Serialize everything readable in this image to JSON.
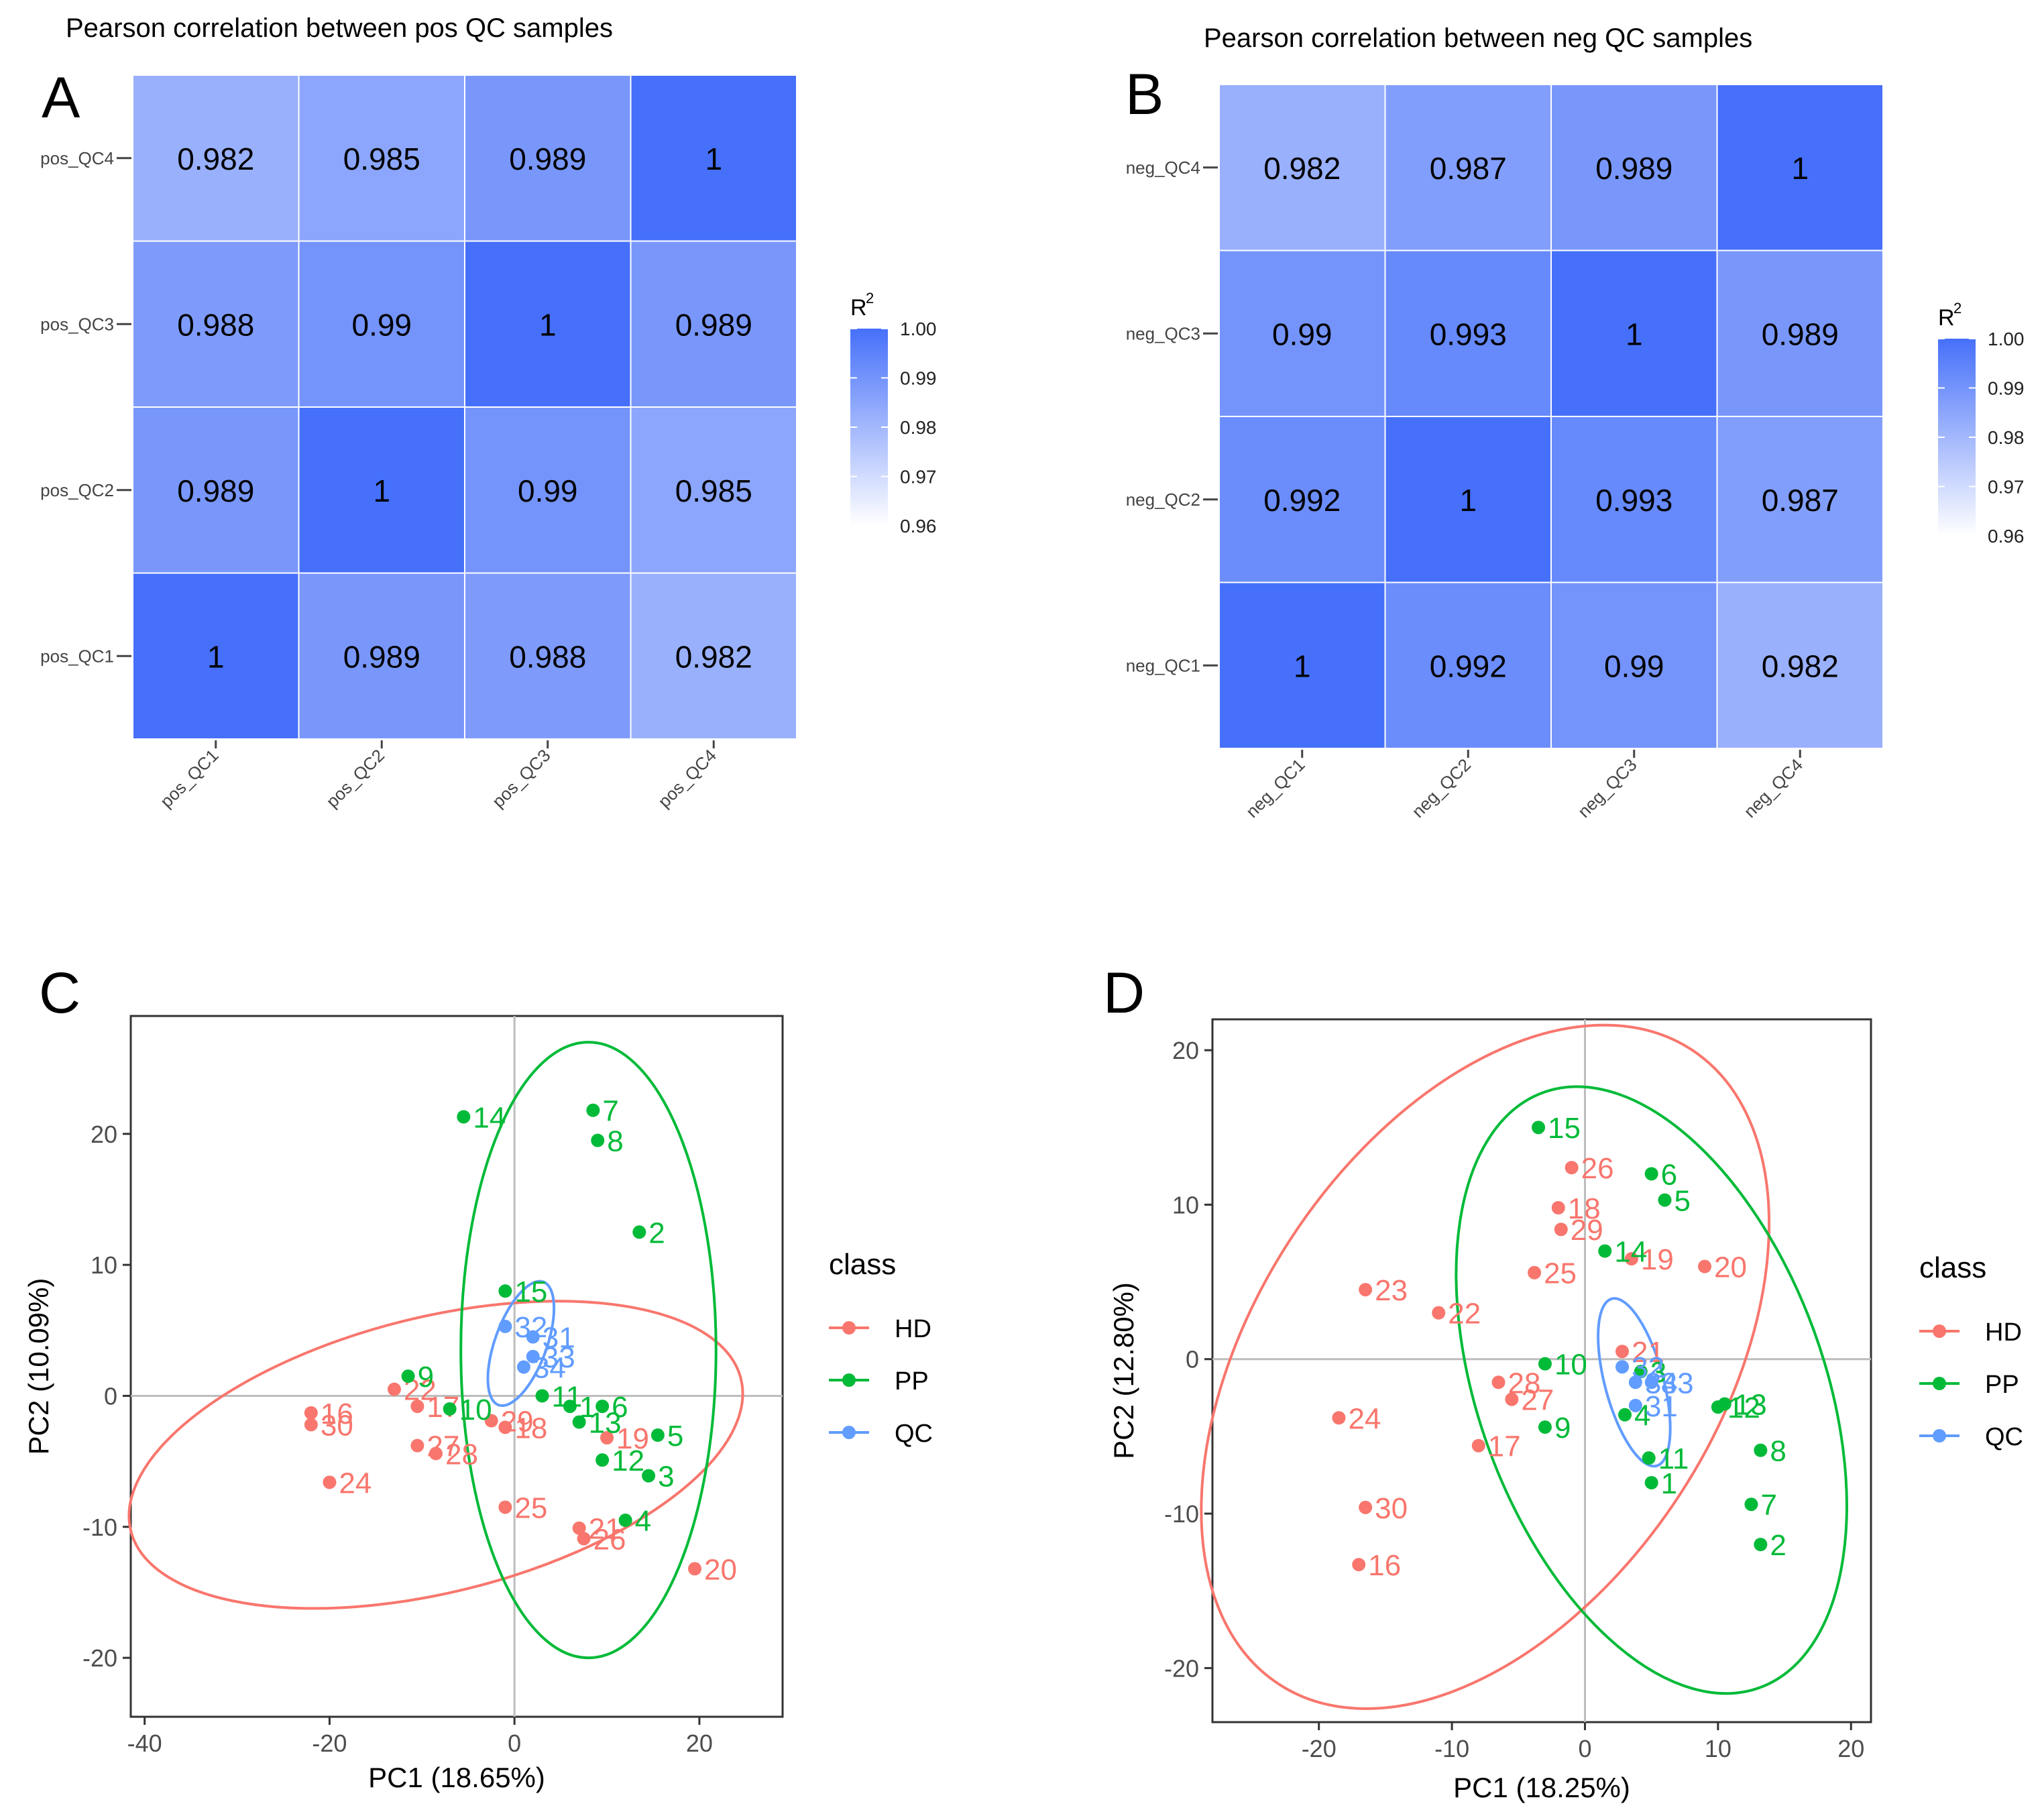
{
  "colors": {
    "HD": "#F8766D",
    "PP": "#00BA38",
    "QC": "#619CFF",
    "heat_high": "#4670FA",
    "heat_low": "#FFFFFF"
  },
  "chart_data": [
    {
      "id": "A",
      "panel_letter": "A",
      "type": "heatmap",
      "title": "Pearson correlation between pos QC samples",
      "rows": [
        "pos_QC4",
        "pos_QC3",
        "pos_QC2",
        "pos_QC1"
      ],
      "cols": [
        "pos_QC1",
        "pos_QC2",
        "pos_QC3",
        "pos_QC4"
      ],
      "values": [
        [
          0.982,
          0.985,
          0.989,
          1
        ],
        [
          0.988,
          0.99,
          1,
          0.989
        ],
        [
          0.989,
          1,
          0.99,
          0.985
        ],
        [
          1,
          0.989,
          0.988,
          0.982
        ]
      ],
      "labels": [
        [
          "0.982",
          "0.985",
          "0.989",
          "1"
        ],
        [
          "0.988",
          "0.99",
          "1",
          "0.989"
        ],
        [
          "0.989",
          "1",
          "0.99",
          "0.985"
        ],
        [
          "1",
          "0.989",
          "0.988",
          "0.982"
        ]
      ],
      "legend": {
        "title": "R",
        "title_sup": "2",
        "range": [
          0.96,
          1.0
        ],
        "ticks": [
          "1.00",
          "0.99",
          "0.98",
          "0.97",
          "0.96"
        ]
      }
    },
    {
      "id": "B",
      "panel_letter": "B",
      "type": "heatmap",
      "title": "Pearson correlation between neg QC samples",
      "rows": [
        "neg_QC4",
        "neg_QC3",
        "neg_QC2",
        "neg_QC1"
      ],
      "cols": [
        "neg_QC1",
        "neg_QC2",
        "neg_QC3",
        "neg_QC4"
      ],
      "values": [
        [
          0.982,
          0.987,
          0.989,
          1
        ],
        [
          0.99,
          0.993,
          1,
          0.989
        ],
        [
          0.992,
          1,
          0.993,
          0.987
        ],
        [
          1,
          0.992,
          0.99,
          0.982
        ]
      ],
      "labels": [
        [
          "0.982",
          "0.987",
          "0.989",
          "1"
        ],
        [
          "0.99",
          "0.993",
          "1",
          "0.989"
        ],
        [
          "0.992",
          "1",
          "0.993",
          "0.987"
        ],
        [
          "1",
          "0.992",
          "0.99",
          "0.982"
        ]
      ],
      "legend": {
        "title": "R",
        "title_sup": "2",
        "range": [
          0.96,
          1.0
        ],
        "ticks": [
          "1.00",
          "0.99",
          "0.98",
          "0.97",
          "0.96"
        ]
      }
    },
    {
      "id": "C",
      "panel_letter": "C",
      "type": "scatter",
      "xlabel": "PC1 (18.65%)",
      "ylabel": "PC2 (10.09%)",
      "xlim": [
        -41.5,
        29
      ],
      "ylim": [
        -24.5,
        29
      ],
      "xticks": [
        "-40",
        "-20",
        "0",
        "20"
      ],
      "yticks": [
        "-20",
        "-10",
        "0",
        "10",
        "20"
      ],
      "legend_title": "class",
      "legend": [
        "HD",
        "PP",
        "QC"
      ],
      "series": [
        {
          "name": "HD",
          "points": [
            {
              "label": "16",
              "x": -22,
              "y": -1.3
            },
            {
              "label": "30",
              "x": -22,
              "y": -2.2
            },
            {
              "label": "24",
              "x": -20,
              "y": -6.6
            },
            {
              "label": "22",
              "x": -13,
              "y": 0.5
            },
            {
              "label": "17",
              "x": -10.5,
              "y": -0.8
            },
            {
              "label": "27",
              "x": -10.5,
              "y": -3.8
            },
            {
              "label": "28",
              "x": -8.5,
              "y": -4.4
            },
            {
              "label": "29",
              "x": -2.5,
              "y": -1.9
            },
            {
              "label": "18",
              "x": -1,
              "y": -2.4
            },
            {
              "label": "25",
              "x": -1,
              "y": -8.5
            },
            {
              "label": "19",
              "x": 10,
              "y": -3.2
            },
            {
              "label": "21",
              "x": 7,
              "y": -10.1
            },
            {
              "label": "26",
              "x": 7.5,
              "y": -10.9
            },
            {
              "label": "20",
              "x": 19.5,
              "y": -13.2
            }
          ]
        },
        {
          "name": "PP",
          "points": [
            {
              "label": "14",
              "x": -5.5,
              "y": 21.3
            },
            {
              "label": "7",
              "x": 8.5,
              "y": 21.8
            },
            {
              "label": "8",
              "x": 9,
              "y": 19.5
            },
            {
              "label": "2",
              "x": 13.5,
              "y": 12.5
            },
            {
              "label": "15",
              "x": -1,
              "y": 8
            },
            {
              "label": "9",
              "x": -11.5,
              "y": 1.5
            },
            {
              "label": "10",
              "x": -7,
              "y": -1
            },
            {
              "label": "11",
              "x": 3,
              "y": 0
            },
            {
              "label": "1",
              "x": 6,
              "y": -0.8
            },
            {
              "label": "6",
              "x": 9.5,
              "y": -0.8
            },
            {
              "label": "13",
              "x": 7,
              "y": -2
            },
            {
              "label": "5",
              "x": 15.5,
              "y": -3
            },
            {
              "label": "12",
              "x": 9.5,
              "y": -4.9
            },
            {
              "label": "3",
              "x": 14.5,
              "y": -6.1
            },
            {
              "label": "4",
              "x": 12,
              "y": -9.5
            }
          ]
        },
        {
          "name": "QC",
          "points": [
            {
              "label": "32",
              "x": -1,
              "y": 5.3
            },
            {
              "label": "31",
              "x": 2,
              "y": 4.5
            },
            {
              "label": "33",
              "x": 2,
              "y": 3
            },
            {
              "label": "34",
              "x": 1,
              "y": 2.2
            }
          ]
        }
      ],
      "ellipses": [
        {
          "class": "HD",
          "cx": -8.5,
          "cy": -4.5,
          "rx": 34,
          "ry": 10.5,
          "angle": -14
        },
        {
          "class": "PP",
          "cx": 8,
          "cy": 3.5,
          "rx": 13.8,
          "ry": 23.5,
          "angle": 0
        },
        {
          "class": "QC",
          "cx": 0.7,
          "cy": 4,
          "rx": 2.8,
          "ry": 5,
          "angle": 20
        }
      ]
    },
    {
      "id": "D",
      "panel_letter": "D",
      "type": "scatter",
      "xlabel": "PC1 (18.25%)",
      "ylabel": "PC2 (12.80%)",
      "xlim": [
        -28,
        21.5
      ],
      "ylim": [
        -23.5,
        22
      ],
      "xticks": [
        "-20",
        "-10",
        "0",
        "10",
        "20"
      ],
      "yticks": [
        "-20",
        "-10",
        "0",
        "10",
        "20"
      ],
      "legend_title": "class",
      "legend": [
        "HD",
        "PP",
        "QC"
      ],
      "series": [
        {
          "name": "HD",
          "points": [
            {
              "label": "26",
              "x": -1,
              "y": 12.4
            },
            {
              "label": "18",
              "x": -2,
              "y": 9.8
            },
            {
              "label": "29",
              "x": -1.8,
              "y": 8.4
            },
            {
              "label": "19",
              "x": 3.5,
              "y": 6.5
            },
            {
              "label": "20",
              "x": 9,
              "y": 6
            },
            {
              "label": "25",
              "x": -3.8,
              "y": 5.6
            },
            {
              "label": "23",
              "x": -16.5,
              "y": 4.5
            },
            {
              "label": "22",
              "x": -11,
              "y": 3
            },
            {
              "label": "21",
              "x": 2.8,
              "y": 0.5
            },
            {
              "label": "28",
              "x": -6.5,
              "y": -1.5
            },
            {
              "label": "27",
              "x": -5.5,
              "y": -2.6
            },
            {
              "label": "24",
              "x": -18.5,
              "y": -3.8
            },
            {
              "label": "17",
              "x": -8,
              "y": -5.6
            },
            {
              "label": "30",
              "x": -16.5,
              "y": -9.6
            },
            {
              "label": "16",
              "x": -17,
              "y": -13.3
            }
          ]
        },
        {
          "name": "PP",
          "points": [
            {
              "label": "15",
              "x": -3.5,
              "y": 15
            },
            {
              "label": "6",
              "x": 5,
              "y": 12
            },
            {
              "label": "5",
              "x": 6,
              "y": 10.3
            },
            {
              "label": "14",
              "x": 1.5,
              "y": 7
            },
            {
              "label": "10",
              "x": -3,
              "y": -0.3
            },
            {
              "label": "3",
              "x": 4.2,
              "y": -0.8
            },
            {
              "label": "9",
              "x": -3,
              "y": -4.4
            },
            {
              "label": "4",
              "x": 3,
              "y": -3.6
            },
            {
              "label": "12",
              "x": 10,
              "y": -3.1
            },
            {
              "label": "13",
              "x": 10.5,
              "y": -2.9
            },
            {
              "label": "8",
              "x": 13.2,
              "y": -5.9
            },
            {
              "label": "11",
              "x": 4.8,
              "y": -6.4
            },
            {
              "label": "1",
              "x": 5,
              "y": -8
            },
            {
              "label": "7",
              "x": 12.5,
              "y": -9.4
            },
            {
              "label": "2",
              "x": 13.2,
              "y": -12
            }
          ]
        },
        {
          "name": "QC",
          "points": [
            {
              "label": "32",
              "x": 2.8,
              "y": -0.5
            },
            {
              "label": "34",
              "x": 3.8,
              "y": -1.5
            },
            {
              "label": "33",
              "x": 5,
              "y": -1.5
            },
            {
              "label": "31",
              "x": 3.8,
              "y": -3
            }
          ]
        }
      ],
      "ellipses": [
        {
          "class": "HD",
          "cx": -7.5,
          "cy": -0.5,
          "rx": 17.5,
          "ry": 24.5,
          "angle": 33
        },
        {
          "class": "PP",
          "cx": 5,
          "cy": -2,
          "rx": 13,
          "ry": 20.5,
          "angle": -20
        },
        {
          "class": "QC",
          "cx": 3.7,
          "cy": -1.5,
          "rx": 2.2,
          "ry": 5.6,
          "angle": -15
        }
      ]
    }
  ]
}
